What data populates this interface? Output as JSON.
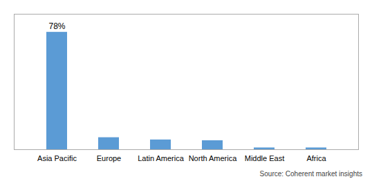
{
  "chart_data": {
    "type": "bar",
    "categories": [
      "Asia Pacific",
      "Europe",
      "Latin America",
      "North America",
      "Middle East",
      "Africa"
    ],
    "values": [
      78,
      8,
      6.5,
      6.0,
      1.2,
      1.2
    ],
    "color": "#5b9bd5",
    "ylim": [
      0,
      90
    ],
    "tick_labels": "x",
    "annotations": [
      {
        "category": "Asia Pacific",
        "value": 78,
        "text": "78%"
      }
    ],
    "caption": "Source: Coherent market insights"
  }
}
